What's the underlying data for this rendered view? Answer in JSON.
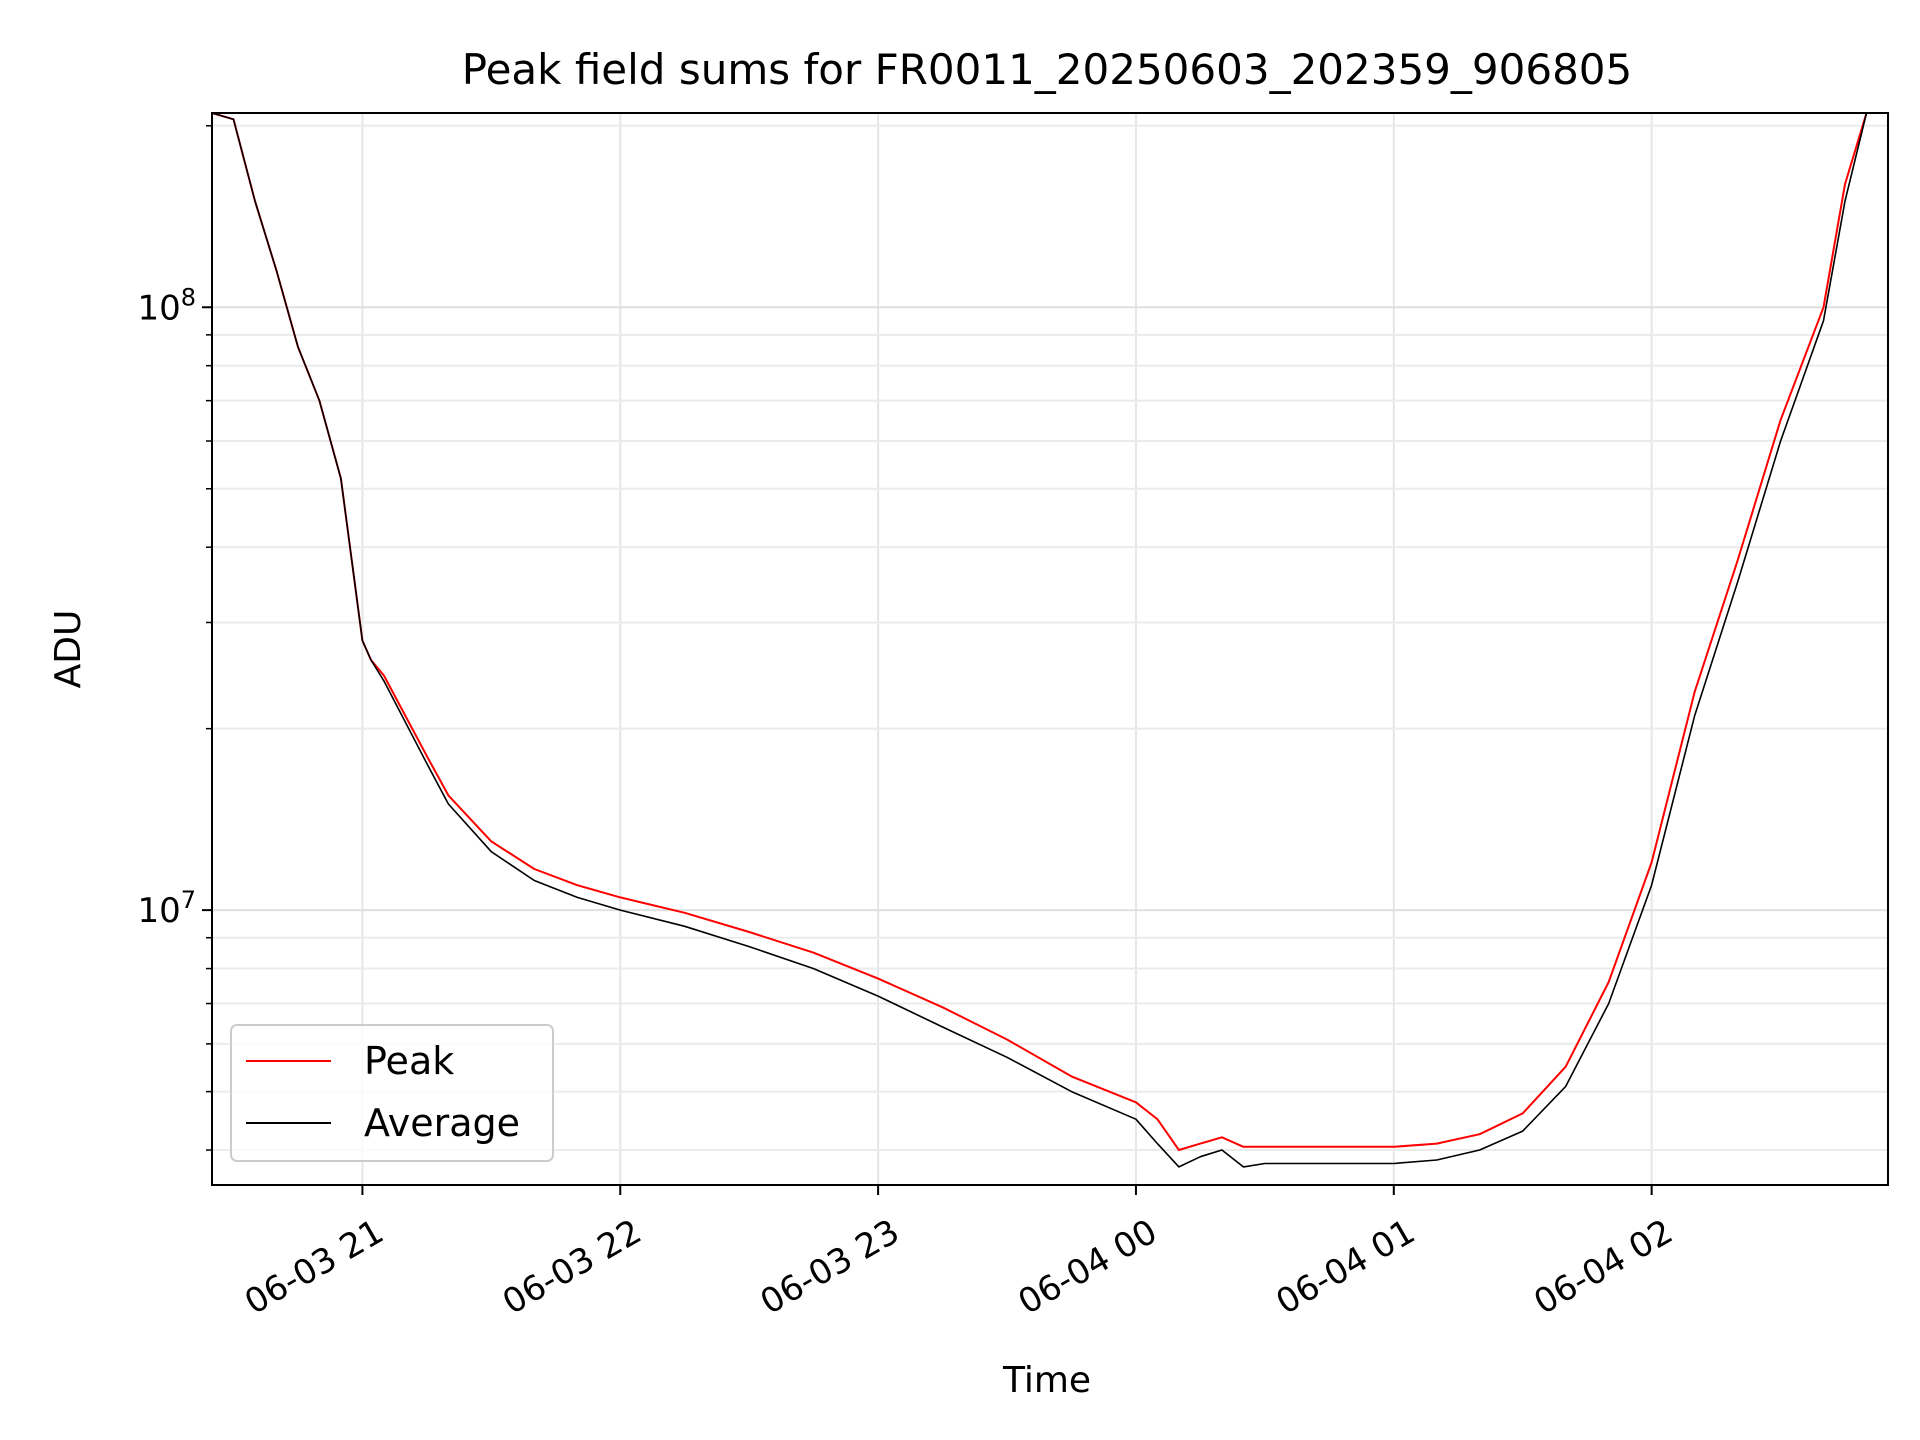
{
  "chart_data": {
    "type": "line",
    "title": "Peak field sums for FR0011_20250603_202359_906805",
    "xlabel": "Time",
    "ylabel": "ADU",
    "yscale": "log",
    "xlim": [
      "2025-06-03 20:25",
      "2025-06-04 02:55"
    ],
    "ylim": [
      3500000,
      210000000
    ],
    "grid": true,
    "legend_position": "lower-left",
    "x_ticks": [
      "2025-06-03 21:00",
      "2025-06-03 22:00",
      "2025-06-03 23:00",
      "2025-06-04 00:00",
      "2025-06-04 01:00",
      "2025-06-04 02:00"
    ],
    "x_tick_labels": [
      "06-03 21",
      "06-03 22",
      "06-03 23",
      "06-04 00",
      "06-04 01",
      "06-04 02"
    ],
    "y_tick_labels": [
      {
        "value": 10000000,
        "base": "10",
        "exp": "7"
      },
      {
        "value": 100000000,
        "base": "10",
        "exp": "8"
      }
    ],
    "colors": {
      "peak": "#ff0000",
      "average": "#000000"
    },
    "x": [
      "2025-06-03 20:25",
      "2025-06-03 20:30",
      "2025-06-03 20:35",
      "2025-06-03 20:40",
      "2025-06-03 20:45",
      "2025-06-03 20:50",
      "2025-06-03 20:55",
      "2025-06-03 21:00",
      "2025-06-03 21:02",
      "2025-06-03 21:05",
      "2025-06-03 21:10",
      "2025-06-03 21:15",
      "2025-06-03 21:20",
      "2025-06-03 21:30",
      "2025-06-03 21:40",
      "2025-06-03 21:50",
      "2025-06-03 22:00",
      "2025-06-03 22:15",
      "2025-06-03 22:30",
      "2025-06-03 22:45",
      "2025-06-03 23:00",
      "2025-06-03 23:15",
      "2025-06-03 23:30",
      "2025-06-03 23:45",
      "2025-06-04 00:00",
      "2025-06-04 00:05",
      "2025-06-04 00:10",
      "2025-06-04 00:15",
      "2025-06-04 00:20",
      "2025-06-04 00:25",
      "2025-06-04 00:30",
      "2025-06-04 00:40",
      "2025-06-04 00:50",
      "2025-06-04 01:00",
      "2025-06-04 01:10",
      "2025-06-04 01:20",
      "2025-06-04 01:30",
      "2025-06-04 01:40",
      "2025-06-04 01:50",
      "2025-06-04 02:00",
      "2025-06-04 02:10",
      "2025-06-04 02:20",
      "2025-06-04 02:30",
      "2025-06-04 02:40",
      "2025-06-04 02:45",
      "2025-06-04 02:50"
    ],
    "series": [
      {
        "name": "Peak",
        "values": [
          210000000,
          205000000,
          150000000,
          115000000,
          86000000,
          70000000,
          52000000,
          28000000,
          26000000,
          24500000,
          21000000,
          18000000,
          15500000,
          13000000,
          11700000,
          11000000,
          10500000,
          9900000,
          9200000,
          8500000,
          7700000,
          6900000,
          6100000,
          5300000,
          4800000,
          4500000,
          4000000,
          4100000,
          4200000,
          4050000,
          4050000,
          4050000,
          4050000,
          4050000,
          4100000,
          4250000,
          4600000,
          5500000,
          7600000,
          12000000,
          23000000,
          38000000,
          65000000,
          100000000,
          160000000,
          210000000
        ]
      },
      {
        "name": "Average",
        "values": [
          210000000,
          205000000,
          150000000,
          115000000,
          86000000,
          70000000,
          52000000,
          28000000,
          26000000,
          24000000,
          20500000,
          17500000,
          15000000,
          12500000,
          11200000,
          10500000,
          10000000,
          9400000,
          8700000,
          8000000,
          7200000,
          6400000,
          5700000,
          5000000,
          4500000,
          4100000,
          3750000,
          3900000,
          4000000,
          3750000,
          3800000,
          3800000,
          3800000,
          3800000,
          3850000,
          4000000,
          4300000,
          5100000,
          7000000,
          11000000,
          21000000,
          35000000,
          60000000,
          95000000,
          150000000,
          210000000
        ]
      }
    ]
  }
}
